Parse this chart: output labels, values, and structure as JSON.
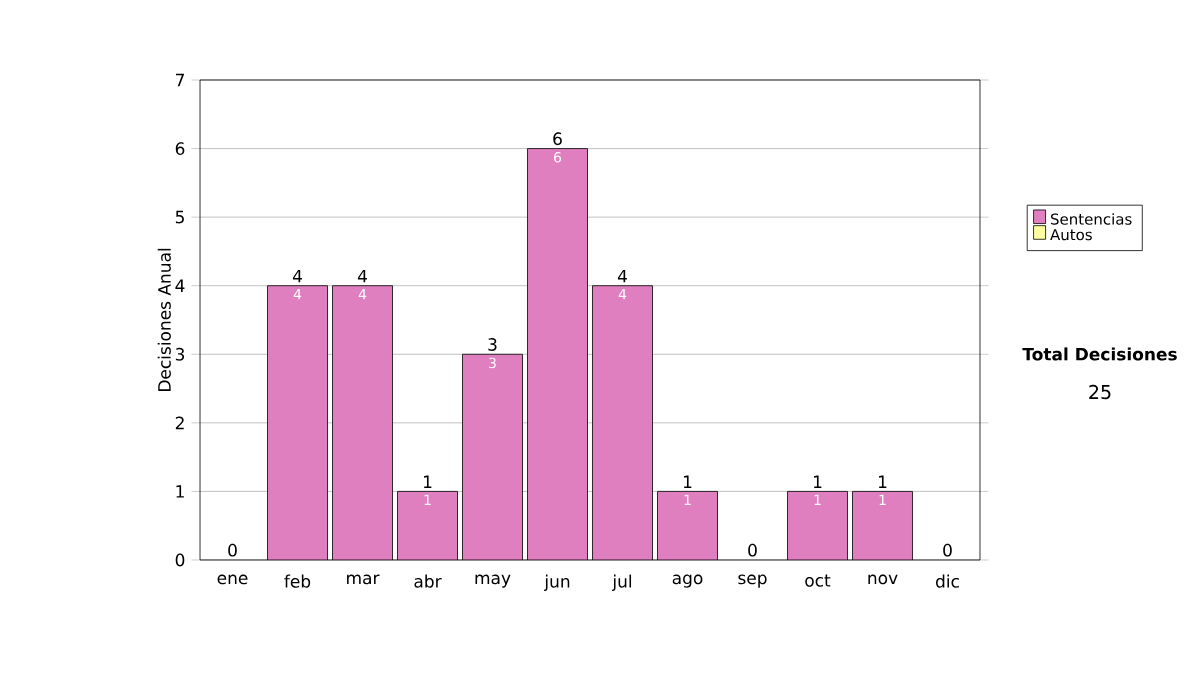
{
  "chart_data": {
    "type": "bar",
    "stacked": true,
    "ylabel": "Decisiones Anual",
    "categories": [
      "ene",
      "feb",
      "mar",
      "abr",
      "may",
      "jun",
      "jul",
      "ago",
      "sep",
      "oct",
      "nov",
      "dic"
    ],
    "series": [
      {
        "name": "Sentencias",
        "color": "#e07fc0",
        "values": [
          0,
          4,
          4,
          1,
          3,
          6,
          4,
          1,
          0,
          1,
          1,
          0
        ],
        "value_labels": [
          null,
          "4",
          "4",
          "1",
          "3",
          "6",
          "4",
          "1",
          null,
          "1",
          "1",
          null
        ]
      },
      {
        "name": "Autos",
        "color": "#ffffa0",
        "values": [
          0,
          0,
          0,
          0,
          0,
          0,
          0,
          0,
          0,
          0,
          0,
          0
        ]
      }
    ],
    "totals": [
      "0",
      "4",
      "4",
      "1",
      "3",
      "6",
      "4",
      "1",
      "0",
      "1",
      "1",
      "0"
    ],
    "ylim": [
      0,
      7
    ],
    "yticks": [
      0,
      1,
      2,
      3,
      4,
      5,
      6,
      7
    ],
    "grid": "y",
    "legend": "right",
    "annotations": [
      "Total Decisiones",
      "25"
    ]
  }
}
